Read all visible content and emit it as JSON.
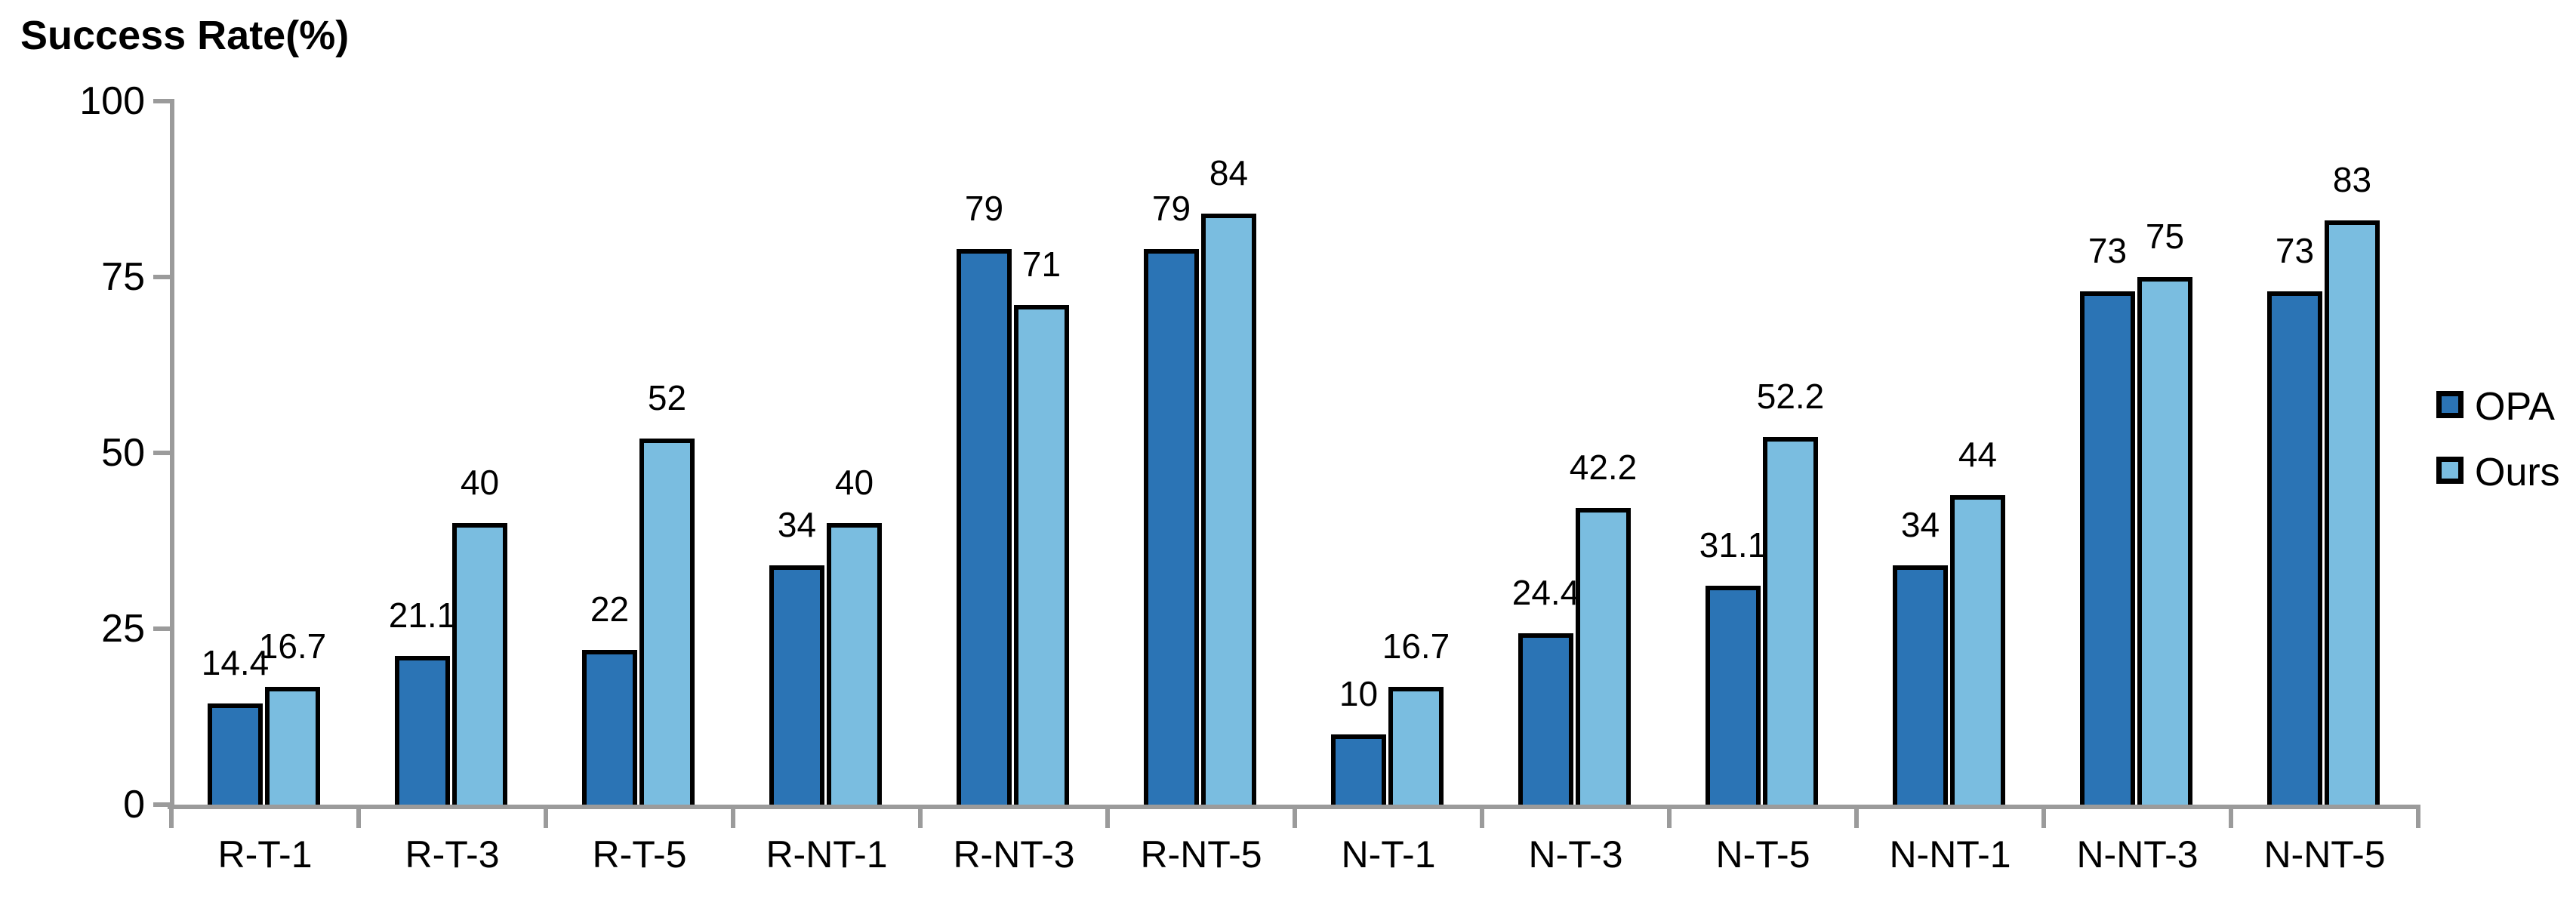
{
  "title": "Success Rate(%)",
  "legend": {
    "position": "right",
    "entries": [
      {
        "label": "OPA",
        "color": "#2B74B5"
      },
      {
        "label": "Ours",
        "color": "#7ABDE0"
      }
    ]
  },
  "chart_data": {
    "type": "bar",
    "title": "Success Rate(%)",
    "categories": [
      "R-T-1",
      "R-T-3",
      "R-T-5",
      "R-NT-1",
      "R-NT-3",
      "R-NT-5",
      "N-T-1",
      "N-T-3",
      "N-T-5",
      "N-NT-1",
      "N-NT-3",
      "N-NT-5"
    ],
    "series": [
      {
        "name": "OPA",
        "color": "#2B74B5",
        "values": [
          14.4,
          21.1,
          22,
          34,
          79,
          79,
          10,
          24.4,
          31.1,
          34,
          73,
          73
        ]
      },
      {
        "name": "Ours",
        "color": "#7ABDE0",
        "values": [
          16.7,
          40,
          52,
          40,
          71,
          84,
          16.7,
          42.2,
          52.2,
          44,
          75,
          83
        ]
      }
    ],
    "xlabel": "",
    "ylabel": "Success Rate(%)",
    "ylim": [
      0,
      100
    ],
    "yticks": [
      0,
      25,
      50,
      75,
      100
    ],
    "grid": false,
    "data_labels": true,
    "bar_border_color": "#000000",
    "axis_color": "#9B9B9B",
    "background_color": "#FFFFFF",
    "legend_position": "right"
  }
}
